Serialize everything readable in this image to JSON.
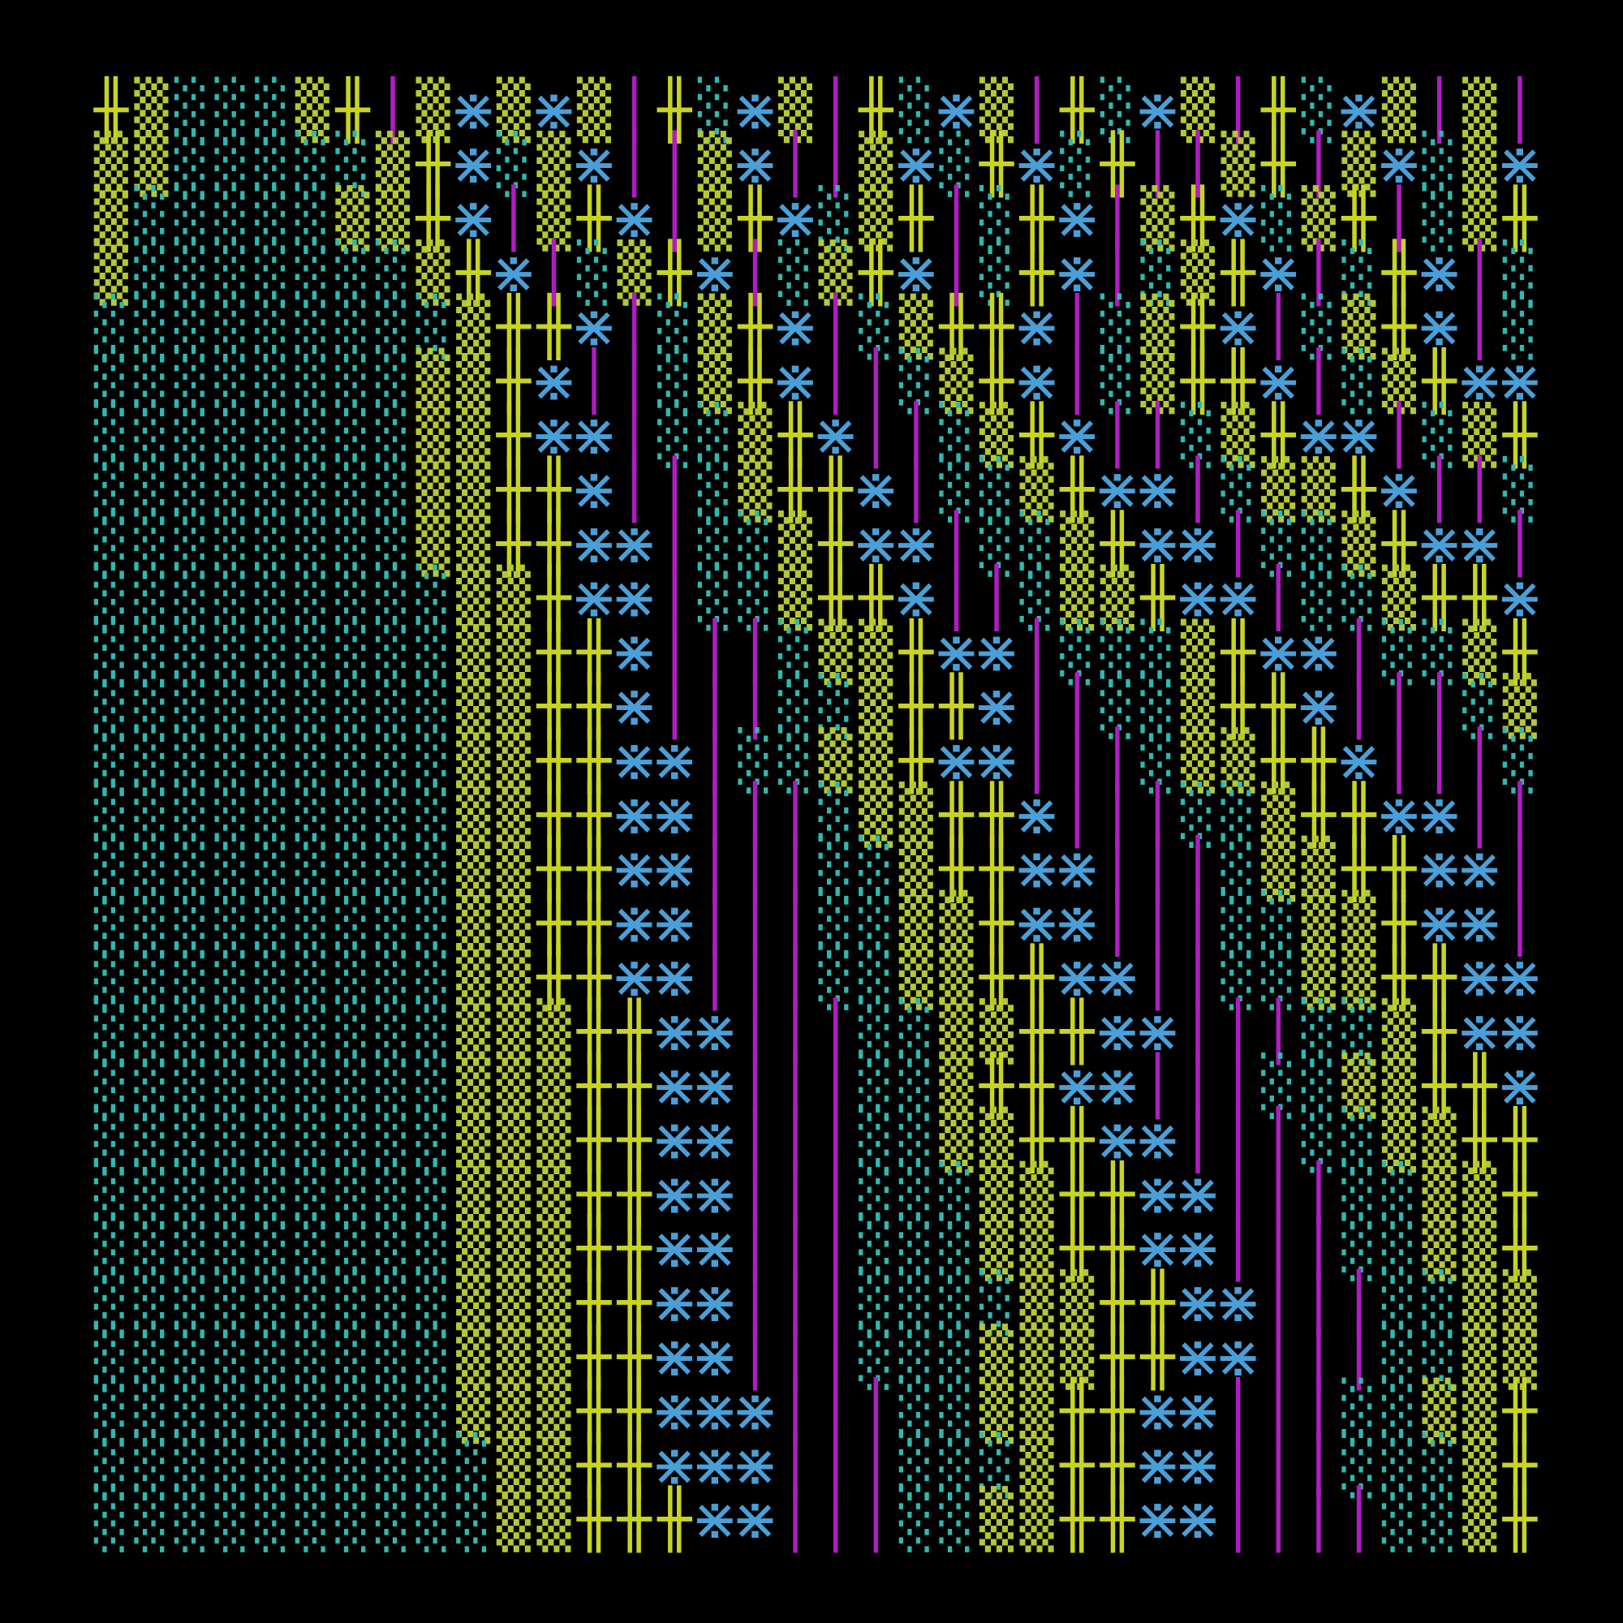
{
  "glyph_colors": {
    "░": "#2fb8b0",
    "▒": "#b4c834",
    "╫": "#c8d424",
    "⋇": "#4a9fd8",
    "│": "#b01cc4"
  },
  "grid": {
    "rows": [
      [
        "╫",
        "▒",
        "░",
        "░",
        "░",
        "▒",
        "╫",
        "│",
        "▒",
        "⋇",
        "▒",
        "⋇",
        "▒",
        "│",
        "╫",
        "░",
        "⋇",
        "▒",
        "│",
        "╫",
        "░",
        "⋇",
        "▒",
        "│",
        "╫",
        "░",
        "⋇",
        "▒",
        "│",
        "╫",
        "░",
        "⋇",
        "▒",
        "│",
        "▒",
        "│"
      ],
      [
        "▒",
        "▒",
        "░",
        "░",
        "░",
        "░",
        "░",
        "▒",
        "╫",
        "⋇",
        "░",
        "▒",
        "⋇",
        "│",
        "│",
        "▒",
        "⋇",
        "│",
        "│",
        "▒",
        "⋇",
        "░",
        "╫",
        "⋇",
        "░",
        "╫",
        "│",
        "│",
        "▒",
        "╫",
        "│",
        "▒",
        "⋇",
        "░",
        "▒",
        "⋇"
      ],
      [
        "▒",
        "░",
        "░",
        "░",
        "░",
        "░",
        "▒",
        "▒",
        "╫",
        "⋇",
        "│",
        "▒",
        "╫",
        "⋇",
        "│",
        "▒",
        "╫",
        "⋇",
        "░",
        "▒",
        "╫",
        "│",
        "░",
        "╫",
        "⋇",
        "│",
        "▒",
        "╫",
        "⋇",
        "░",
        "▒",
        "╫",
        "│",
        "░",
        "▒",
        "╫"
      ],
      [
        "▒",
        "░",
        "░",
        "░",
        "░",
        "░",
        "░",
        "░",
        "▒",
        "╫",
        "⋇",
        "│",
        "░",
        "▒",
        "╫",
        "⋇",
        "│",
        "░",
        "▒",
        "╫",
        "⋇",
        "│",
        "░",
        "╫",
        "⋇",
        "│",
        "░",
        "▒",
        "╫",
        "⋇",
        "│",
        "░",
        "╫",
        "⋇",
        "│",
        "░"
      ],
      [
        "░",
        "░",
        "░",
        "░",
        "░",
        "░",
        "░",
        "░",
        "░",
        "▒",
        "╫",
        "╫",
        "⋇",
        "│",
        "░",
        "▒",
        "╫",
        "⋇",
        "│",
        "░",
        "▒",
        "╫",
        "╫",
        "⋇",
        "│",
        "░",
        "▒",
        "╫",
        "⋇",
        "│",
        "░",
        "▒",
        "╫",
        "⋇",
        "│",
        "░"
      ],
      [
        "░",
        "░",
        "░",
        "░",
        "░",
        "░",
        "░",
        "░",
        "▒",
        "▒",
        "╫",
        "⋇",
        "│",
        "│",
        "░",
        "▒",
        "╫",
        "⋇",
        "│",
        "│",
        "░",
        "▒",
        "╫",
        "⋇",
        "│",
        "░",
        "▒",
        "╫",
        "╫",
        "⋇",
        "│",
        "░",
        "▒",
        "╫",
        "⋇",
        "⋇"
      ],
      [
        "░",
        "░",
        "░",
        "░",
        "░",
        "░",
        "░",
        "░",
        "▒",
        "▒",
        "╫",
        "⋇",
        "⋇",
        "│",
        "░",
        "░",
        "▒",
        "╫",
        "⋇",
        "│",
        "│",
        "░",
        "▒",
        "╫",
        "⋇",
        "│",
        "│",
        "░",
        "▒",
        "╫",
        "⋇",
        "⋇",
        "│",
        "░",
        "▒",
        "╫"
      ],
      [
        "░",
        "░",
        "░",
        "░",
        "░",
        "░",
        "░",
        "░",
        "▒",
        "▒",
        "╫",
        "╫",
        "⋇",
        "│",
        "│",
        "░",
        "▒",
        "╫",
        "╫",
        "⋇",
        "│",
        "░",
        "░",
        "▒",
        "╫",
        "⋇",
        "⋇",
        "│",
        "░",
        "▒",
        "▒",
        "╫",
        "⋇",
        "│",
        "│",
        "░"
      ],
      [
        "░",
        "░",
        "░",
        "░",
        "░",
        "░",
        "░",
        "░",
        "▒",
        "▒",
        "╫",
        "╫",
        "⋇",
        "⋇",
        "│",
        "░",
        "░",
        "▒",
        "╫",
        "⋇",
        "⋇",
        "│",
        "░",
        "░",
        "▒",
        "╫",
        "⋇",
        "⋇",
        "│",
        "░",
        "░",
        "▒",
        "╫",
        "⋇",
        "⋇",
        "│"
      ],
      [
        "░",
        "░",
        "░",
        "░",
        "░",
        "░",
        "░",
        "░",
        "░",
        "▒",
        "▒",
        "╫",
        "⋇",
        "⋇",
        "│",
        "░",
        "░",
        "▒",
        "╫",
        "╫",
        "⋇",
        "│",
        "│",
        "░",
        "▒",
        "▒",
        "╫",
        "⋇",
        "⋇",
        "│",
        "░",
        "░",
        "▒",
        "╫",
        "╫",
        "⋇"
      ],
      [
        "░",
        "░",
        "░",
        "░",
        "░",
        "░",
        "░",
        "░",
        "░",
        "▒",
        "▒",
        "╫",
        "╫",
        "⋇",
        "│",
        "│",
        "│",
        "░",
        "▒",
        "▒",
        "╫",
        "⋇",
        "⋇",
        "│",
        "░",
        "░",
        "░",
        "▒",
        "╫",
        "⋇",
        "⋇",
        "│",
        "░",
        "░",
        "▒",
        "╫"
      ],
      [
        "░",
        "░",
        "░",
        "░",
        "░",
        "░",
        "░",
        "░",
        "░",
        "▒",
        "▒",
        "╫",
        "╫",
        "⋇",
        "│",
        "│",
        "│",
        "░",
        "░",
        "▒",
        "╫",
        "╫",
        "⋇",
        "│",
        "│",
        "░",
        "░",
        "▒",
        "╫",
        "╫",
        "⋇",
        "│",
        "│",
        "│",
        "░",
        "▒"
      ],
      [
        "░",
        "░",
        "░",
        "░",
        "░",
        "░",
        "░",
        "░",
        "░",
        "▒",
        "▒",
        "╫",
        "╫",
        "⋇",
        "⋇",
        "│",
        "░",
        "░",
        "▒",
        "▒",
        "╫",
        "⋇",
        "⋇",
        "│",
        "│",
        "│",
        "░",
        "▒",
        "▒",
        "╫",
        "╫",
        "⋇",
        "│",
        "│",
        "│",
        "░"
      ],
      [
        "░",
        "░",
        "░",
        "░",
        "░",
        "░",
        "░",
        "░",
        "░",
        "▒",
        "▒",
        "╫",
        "╫",
        "⋇",
        "⋇",
        "│",
        "│",
        "│",
        "░",
        "▒",
        "▒",
        "╫",
        "╫",
        "⋇",
        "│",
        "│",
        "│",
        "░",
        "░",
        "▒",
        "╫",
        "╫",
        "⋇",
        "⋇",
        "│",
        "│"
      ],
      [
        "░",
        "░",
        "░",
        "░",
        "░",
        "░",
        "░",
        "░",
        "░",
        "▒",
        "▒",
        "╫",
        "╫",
        "⋇",
        "⋇",
        "│",
        "│",
        "│",
        "░",
        "░",
        "▒",
        "╫",
        "╫",
        "⋇",
        "⋇",
        "│",
        "│",
        "│",
        "░",
        "▒",
        "▒",
        "╫",
        "╫",
        "⋇",
        "⋇",
        "│"
      ],
      [
        "░",
        "░",
        "░",
        "░",
        "░",
        "░",
        "░",
        "░",
        "░",
        "▒",
        "▒",
        "╫",
        "╫",
        "⋇",
        "⋇",
        "│",
        "│",
        "│",
        "░",
        "░",
        "▒",
        "▒",
        "╫",
        "⋇",
        "⋇",
        "│",
        "│",
        "│",
        "░",
        "░",
        "▒",
        "▒",
        "╫",
        "⋇",
        "⋇",
        "│"
      ],
      [
        "░",
        "░",
        "░",
        "░",
        "░",
        "░",
        "░",
        "░",
        "░",
        "▒",
        "▒",
        "╫",
        "╫",
        "⋇",
        "⋇",
        "│",
        "│",
        "│",
        "░",
        "░",
        "▒",
        "▒",
        "╫",
        "╫",
        "⋇",
        "⋇",
        "│",
        "│",
        "░",
        "░",
        "▒",
        "▒",
        "╫",
        "╫",
        "⋇",
        "⋇"
      ],
      [
        "░",
        "░",
        "░",
        "░",
        "░",
        "░",
        "░",
        "░",
        "░",
        "▒",
        "▒",
        "▒",
        "╫",
        "╫",
        "⋇",
        "⋇",
        "│",
        "│",
        "│",
        "░",
        "░",
        "▒",
        "▒",
        "╫",
        "╫",
        "⋇",
        "⋇",
        "│",
        "│",
        "│",
        "░",
        "░",
        "▒",
        "╫",
        "⋇",
        "⋇"
      ],
      [
        "░",
        "░",
        "░",
        "░",
        "░",
        "░",
        "░",
        "░",
        "░",
        "▒",
        "▒",
        "▒",
        "╫",
        "╫",
        "⋇",
        "⋇",
        "│",
        "│",
        "│",
        "░",
        "░",
        "▒",
        "╫",
        "╫",
        "⋇",
        "⋇",
        "│",
        "│",
        "│",
        "░",
        "░",
        "▒",
        "▒",
        "╫",
        "╫",
        "⋇"
      ],
      [
        "░",
        "░",
        "░",
        "░",
        "░",
        "░",
        "░",
        "░",
        "░",
        "▒",
        "▒",
        "▒",
        "╫",
        "╫",
        "⋇",
        "⋇",
        "│",
        "│",
        "│",
        "░",
        "░",
        "▒",
        "▒",
        "╫",
        "╫",
        "⋇",
        "⋇",
        "│",
        "│",
        "│",
        "░",
        "░",
        "▒",
        "▒",
        "╫",
        "╫"
      ],
      [
        "░",
        "░",
        "░",
        "░",
        "░",
        "░",
        "░",
        "░",
        "░",
        "▒",
        "▒",
        "▒",
        "╫",
        "╫",
        "⋇",
        "⋇",
        "│",
        "│",
        "│",
        "░",
        "░",
        "░",
        "▒",
        "▒",
        "╫",
        "╫",
        "⋇",
        "⋇",
        "│",
        "│",
        "│",
        "░",
        "░",
        "▒",
        "▒",
        "╫"
      ],
      [
        "░",
        "░",
        "░",
        "░",
        "░",
        "░",
        "░",
        "░",
        "░",
        "▒",
        "▒",
        "▒",
        "╫",
        "╫",
        "⋇",
        "⋇",
        "│",
        "│",
        "│",
        "░",
        "░",
        "░",
        "▒",
        "▒",
        "╫",
        "╫",
        "⋇",
        "⋇",
        "│",
        "│",
        "│",
        "░",
        "░",
        "▒",
        "▒",
        "╫"
      ],
      [
        "░",
        "░",
        "░",
        "░",
        "░",
        "░",
        "░",
        "░",
        "░",
        "▒",
        "▒",
        "▒",
        "╫",
        "╫",
        "⋇",
        "⋇",
        "│",
        "│",
        "│",
        "░",
        "░",
        "░",
        "░",
        "▒",
        "▒",
        "╫",
        "╫",
        "⋇",
        "⋇",
        "│",
        "│",
        "│",
        "░",
        "░",
        "▒",
        "▒"
      ],
      [
        "░",
        "░",
        "░",
        "░",
        "░",
        "░",
        "░",
        "░",
        "░",
        "▒",
        "▒",
        "▒",
        "╫",
        "╫",
        "⋇",
        "⋇",
        "│",
        "│",
        "│",
        "░",
        "░",
        "░",
        "▒",
        "▒",
        "▒",
        "╫",
        "╫",
        "⋇",
        "⋇",
        "│",
        "│",
        "│",
        "░",
        "░",
        "▒",
        "▒"
      ],
      [
        "░",
        "░",
        "░",
        "░",
        "░",
        "░",
        "░",
        "░",
        "░",
        "▒",
        "▒",
        "▒",
        "╫",
        "╫",
        "⋇",
        "⋇",
        "⋇",
        "│",
        "│",
        "│",
        "░",
        "░",
        "▒",
        "▒",
        "╫",
        "╫",
        "⋇",
        "⋇",
        "│",
        "│",
        "│",
        "░",
        "░",
        "▒",
        "▒",
        "╫"
      ],
      [
        "░",
        "░",
        "░",
        "░",
        "░",
        "░",
        "░",
        "░",
        "░",
        "░",
        "▒",
        "▒",
        "╫",
        "╫",
        "⋇",
        "⋇",
        "⋇",
        "│",
        "│",
        "│",
        "░",
        "░",
        "░",
        "▒",
        "╫",
        "╫",
        "⋇",
        "⋇",
        "│",
        "│",
        "│",
        "░",
        "░",
        "░",
        "▒",
        "╫"
      ],
      [
        "░",
        "░",
        "░",
        "░",
        "░",
        "░",
        "░",
        "░",
        "░",
        "░",
        "▒",
        "▒",
        "╫",
        "╫",
        "╫",
        "⋇",
        "⋇",
        "│",
        "│",
        "│",
        "░",
        "░",
        "▒",
        "▒",
        "╫",
        "╫",
        "⋇",
        "⋇",
        "│",
        "│",
        "│",
        "│",
        "░",
        "░",
        "▒",
        "╫"
      ]
    ]
  }
}
